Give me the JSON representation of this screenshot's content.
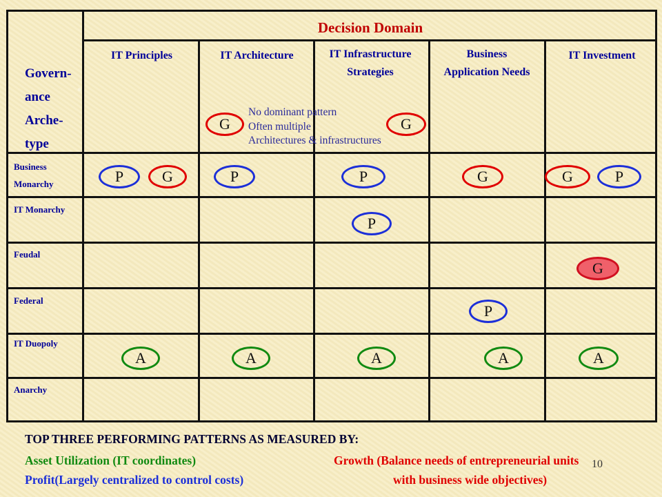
{
  "header": {
    "title": "Decision Domain",
    "governance_label": [
      "Govern-",
      "ance",
      "Arche-",
      "type"
    ],
    "domains": [
      {
        "label": "IT Principles"
      },
      {
        "label": "IT Architecture"
      },
      {
        "label": "IT Infrastructure Strategies"
      },
      {
        "label": "Business Application Needs"
      },
      {
        "label": "IT Investment"
      }
    ]
  },
  "rows": [
    {
      "label": "Business Monarchy"
    },
    {
      "label": "IT Monarchy"
    },
    {
      "label": "Feudal"
    },
    {
      "label": "Federal"
    },
    {
      "label": "IT Duopoly"
    },
    {
      "label": "Anarchy"
    }
  ],
  "markers": [
    {
      "letter": "G",
      "color": "blue",
      "note_row": "header"
    },
    {
      "letter": "G",
      "color": "red"
    },
    {
      "letter": "P",
      "color": "blue"
    },
    {
      "letter": "G",
      "color": "red"
    },
    {
      "letter": "P",
      "color": "blue"
    },
    {
      "letter": "P",
      "color": "blue"
    },
    {
      "letter": "G",
      "color": "red"
    },
    {
      "letter": "G",
      "color": "red"
    },
    {
      "letter": "P",
      "color": "blue"
    },
    {
      "letter": "P",
      "color": "blue"
    },
    {
      "letter": "G",
      "color": "filled"
    },
    {
      "letter": "P",
      "color": "blue"
    },
    {
      "letter": "A",
      "color": "green"
    },
    {
      "letter": "A",
      "color": "green"
    },
    {
      "letter": "A",
      "color": "green"
    },
    {
      "letter": "A",
      "color": "green"
    },
    {
      "letter": "A",
      "color": "green"
    }
  ],
  "note": {
    "line1": "No dominant pattern",
    "line2": "Often multiple",
    "line3": "Architectures & infrastructures"
  },
  "footer": {
    "heading": "TOP THREE PERFORMING PATTERNS AS MEASURED BY:",
    "asset": "Asset Utilization (IT coordinates)",
    "profit": "Profit(Largely centralized to control costs)",
    "growth_line1": "Growth (Balance needs of entrepreneurial units",
    "growth_line2": "with business wide objectives)"
  },
  "page_number": "10",
  "colors": {
    "accent_red": "#c00000",
    "navy": "#000099",
    "profit_blue": "#1c2fd8",
    "growth_red": "#e00000",
    "asset_green": "#118a11"
  }
}
